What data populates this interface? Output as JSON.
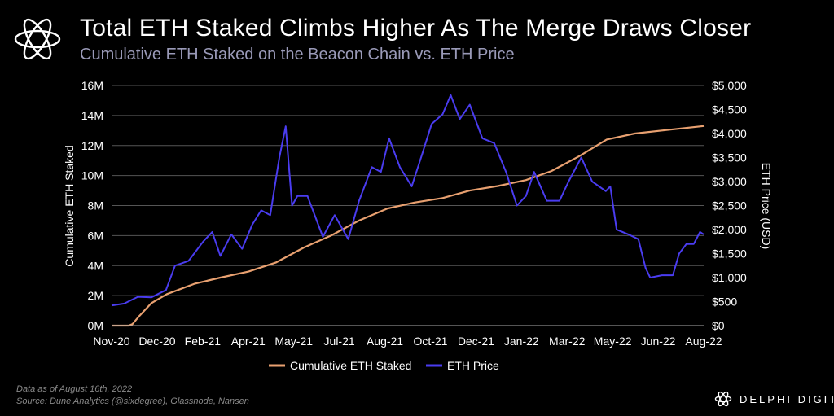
{
  "header": {
    "title": "Total ETH Staked Climbs Higher As The Merge Draws Closer",
    "subtitle": "Cumulative ETH Staked on the Beacon Chain vs. ETH Price"
  },
  "footer": {
    "note": "Data as of August 16th, 2022",
    "source": "Source: Dune Analytics (@sixdegree), Glassnode, Nansen"
  },
  "brand": {
    "name": "DELPHI DIGITAL",
    "icon": "delphi-logo-icon"
  },
  "colors": {
    "background": "#000000",
    "staked": "#e8a070",
    "price": "#4a3cf0",
    "grid": "#555555"
  },
  "chart_data": {
    "type": "line",
    "title": "Total ETH Staked Climbs Higher As The Merge Draws Closer",
    "subtitle": "Cumulative ETH Staked on the Beacon Chain vs. ETH Price",
    "x_tick_labels": [
      "Nov-20",
      "Dec-20",
      "Feb-21",
      "Apr-21",
      "May-21",
      "Jul-21",
      "Aug-21",
      "Oct-21",
      "Dec-21",
      "Jan-22",
      "Mar-22",
      "May-22",
      "Jun-22",
      "Aug-22"
    ],
    "xlim": [
      "2020-11-01",
      "2022-08-16"
    ],
    "y_left": {
      "label": "Cumulative ETH Staked",
      "range": [
        0,
        16000000
      ],
      "tick_labels": [
        "0M",
        "2M",
        "4M",
        "6M",
        "8M",
        "10M",
        "12M",
        "14M",
        "16M"
      ]
    },
    "y_right": {
      "label": "ETH Price (USD)",
      "range": [
        0,
        5000
      ],
      "tick_labels": [
        "$0",
        "$500",
        "$1,000",
        "$1,500",
        "$2,000",
        "$2,500",
        "$3,000",
        "$3,500",
        "$4,000",
        "$4,500",
        "$5,000"
      ]
    },
    "grid": true,
    "legend_position": "bottom-center",
    "series": [
      {
        "name": "Cumulative ETH Staked",
        "axis": "left",
        "color": "#e8a070",
        "points": [
          [
            "2020-11-01",
            0
          ],
          [
            "2020-11-20",
            0
          ],
          [
            "2020-11-24",
            100000
          ],
          [
            "2020-12-01",
            600000
          ],
          [
            "2020-12-15",
            1500000
          ],
          [
            "2021-01-01",
            2100000
          ],
          [
            "2021-02-01",
            2800000
          ],
          [
            "2021-03-01",
            3200000
          ],
          [
            "2021-04-01",
            3600000
          ],
          [
            "2021-05-01",
            4200000
          ],
          [
            "2021-06-01",
            5200000
          ],
          [
            "2021-07-01",
            6000000
          ],
          [
            "2021-08-01",
            7000000
          ],
          [
            "2021-09-01",
            7800000
          ],
          [
            "2021-10-01",
            8200000
          ],
          [
            "2021-11-01",
            8500000
          ],
          [
            "2021-12-01",
            9000000
          ],
          [
            "2022-01-01",
            9300000
          ],
          [
            "2022-02-01",
            9700000
          ],
          [
            "2022-03-01",
            10300000
          ],
          [
            "2022-04-01",
            11300000
          ],
          [
            "2022-05-01",
            12400000
          ],
          [
            "2022-06-01",
            12800000
          ],
          [
            "2022-07-01",
            13000000
          ],
          [
            "2022-08-16",
            13300000
          ]
        ]
      },
      {
        "name": "ETH Price",
        "axis": "right",
        "color": "#4a3cf0",
        "points": [
          [
            "2020-11-01",
            420
          ],
          [
            "2020-11-15",
            460
          ],
          [
            "2020-11-30",
            600
          ],
          [
            "2020-12-15",
            590
          ],
          [
            "2020-12-31",
            740
          ],
          [
            "2021-01-10",
            1250
          ],
          [
            "2021-01-25",
            1350
          ],
          [
            "2021-02-10",
            1750
          ],
          [
            "2021-02-20",
            1950
          ],
          [
            "2021-03-01",
            1450
          ],
          [
            "2021-03-13",
            1900
          ],
          [
            "2021-03-25",
            1600
          ],
          [
            "2021-04-05",
            2100
          ],
          [
            "2021-04-15",
            2400
          ],
          [
            "2021-04-25",
            2300
          ],
          [
            "2021-05-05",
            3500
          ],
          [
            "2021-05-12",
            4150
          ],
          [
            "2021-05-19",
            2500
          ],
          [
            "2021-05-25",
            2700
          ],
          [
            "2021-06-05",
            2700
          ],
          [
            "2021-06-22",
            1850
          ],
          [
            "2021-07-05",
            2300
          ],
          [
            "2021-07-20",
            1800
          ],
          [
            "2021-08-01",
            2600
          ],
          [
            "2021-08-15",
            3300
          ],
          [
            "2021-08-25",
            3200
          ],
          [
            "2021-09-03",
            3900
          ],
          [
            "2021-09-15",
            3300
          ],
          [
            "2021-09-28",
            2900
          ],
          [
            "2021-10-10",
            3600
          ],
          [
            "2021-10-20",
            4200
          ],
          [
            "2021-11-01",
            4400
          ],
          [
            "2021-11-10",
            4800
          ],
          [
            "2021-11-20",
            4300
          ],
          [
            "2021-12-01",
            4600
          ],
          [
            "2021-12-15",
            3900
          ],
          [
            "2021-12-28",
            3800
          ],
          [
            "2022-01-10",
            3200
          ],
          [
            "2022-01-22",
            2500
          ],
          [
            "2022-02-01",
            2700
          ],
          [
            "2022-02-10",
            3200
          ],
          [
            "2022-02-24",
            2600
          ],
          [
            "2022-03-10",
            2600
          ],
          [
            "2022-03-20",
            3000
          ],
          [
            "2022-04-03",
            3500
          ],
          [
            "2022-04-15",
            3000
          ],
          [
            "2022-04-30",
            2800
          ],
          [
            "2022-05-05",
            2900
          ],
          [
            "2022-05-12",
            2000
          ],
          [
            "2022-05-25",
            1900
          ],
          [
            "2022-06-05",
            1800
          ],
          [
            "2022-06-13",
            1200
          ],
          [
            "2022-06-18",
            1000
          ],
          [
            "2022-07-01",
            1050
          ],
          [
            "2022-07-13",
            1050
          ],
          [
            "2022-07-20",
            1500
          ],
          [
            "2022-07-28",
            1700
          ],
          [
            "2022-08-05",
            1700
          ],
          [
            "2022-08-12",
            1950
          ],
          [
            "2022-08-16",
            1900
          ]
        ]
      }
    ]
  }
}
